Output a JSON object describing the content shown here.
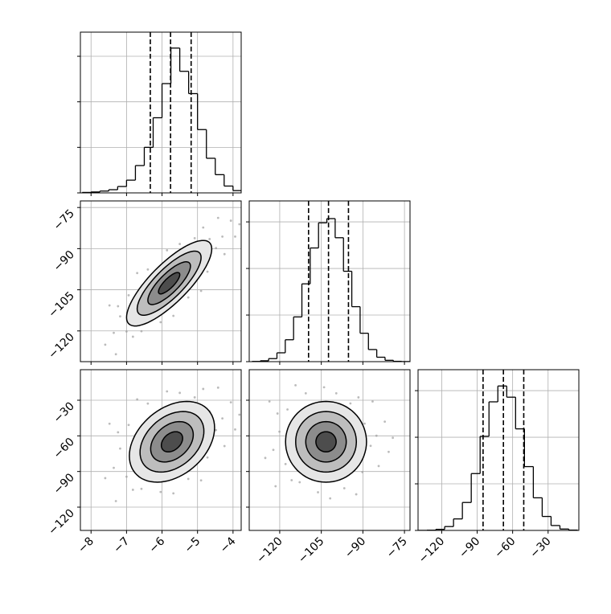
{
  "chart_data": [
    {
      "type": "histogram",
      "color": "#000000",
      "grid": true,
      "bins": [
        -8.25,
        -8,
        -7.75,
        -7.5,
        -7.25,
        -7,
        -6.75,
        -6.5,
        -6.25,
        -6,
        -5.75,
        -5.5,
        -5.25,
        -5,
        -4.75,
        -4.5,
        -4.25,
        -4,
        -3.75
      ],
      "counts": [
        10,
        20,
        40,
        70,
        140,
        280,
        600,
        1000,
        1650,
        2400,
        3180,
        2670,
        2180,
        1390,
        760,
        400,
        150,
        50
      ],
      "quantiles": [
        -6.33,
        -5.76,
        -5.18
      ],
      "xlim": [
        -8.3,
        -3.77
      ],
      "xticks": [
        -8,
        -7,
        -6,
        -5,
        -4
      ],
      "ylim": [
        0,
        3530
      ],
      "yticks": [
        0,
        1000,
        2000,
        3000
      ]
    },
    {
      "type": "scatter",
      "color": "#9e9e9e",
      "grid": true,
      "x": [
        -4.3,
        -7.36,
        -4.72,
        -6.94,
        -5.5,
        -6.04,
        -4.06,
        -7.6,
        -5.08,
        -6.58,
        -4.48,
        -7.18,
        -5.68,
        -5.86,
        -4.84,
        -6.82,
        -4.24,
        -7.24,
        -3.94,
        -7.48,
        -5.26,
        -6.4,
        -4.66,
        -7.0,
        -5.8,
        -5.44,
        -6.16,
        -5.14,
        -6.52,
        -5.62,
        -5.98,
        -4.42,
        -7.3,
        -4.9,
        -6.7,
        -3.82
      ],
      "y": [
        -85.6,
        -120.7,
        -98.4,
        -107.0,
        -88.3,
        -116.8,
        -79.8,
        -125.0,
        -86.2,
        -120.1,
        -89.8,
        -114.7,
        -114.5,
        -90.6,
        -82.3,
        -122.1,
        -92.0,
        -111.0,
        -85.6,
        -110.7,
        -107.8,
        -97.6,
        -86.5,
        -120.2,
        -102.6,
        -102.2,
        -102.6,
        -94.3,
        -111.0,
        -95.1,
        -110.6,
        -78.8,
        -128.5,
        -105.4,
        -98.9,
        -81.1
      ],
      "contours": {
        "center": [
          -5.8,
          -102.6
        ],
        "sigma": [
          0.6,
          7.8
        ],
        "rho": 0.8,
        "levels": [
          2,
          1.5,
          1,
          0.5
        ],
        "fills": [
          "#e6e6e6",
          "#bdbdbd",
          "#8c8c8c",
          "#4d4d4d"
        ],
        "line_color": "#000000"
      },
      "xlim": [
        -8.3,
        -3.77
      ],
      "xticks": [
        -8,
        -7,
        -6,
        -5,
        -4
      ],
      "ylim": [
        -131.2,
        -72.6
      ],
      "yticks": [
        {
          "value": -75,
          "label": "−75"
        },
        {
          "value": -90,
          "label": "−90"
        },
        {
          "value": -105,
          "label": "−105"
        },
        {
          "value": -120,
          "label": "−120"
        }
      ]
    },
    {
      "type": "histogram",
      "color": "#000000",
      "grid": true,
      "bins": [
        -130,
        -127,
        -124,
        -121,
        -118,
        -115,
        -112,
        -109,
        -106,
        -103,
        -100,
        -97,
        -94,
        -91,
        -88,
        -85,
        -82,
        -79,
        -76,
        -73
      ],
      "counts": [
        5,
        19,
        65,
        190,
        470,
        960,
        1670,
        2440,
        2980,
        3070,
        2660,
        1940,
        1180,
        610,
        260,
        95,
        29,
        7,
        2
      ],
      "quantiles": [
        -109.6,
        -102.4,
        -95.2
      ],
      "xlim": [
        -131,
        -73
      ],
      "xticks": [
        -120,
        -105,
        -90,
        -75
      ],
      "ylim": [
        0,
        3450
      ],
      "yticks": [
        0,
        1000,
        2000,
        3000
      ]
    },
    {
      "type": "scatter",
      "color": "#9e9e9e",
      "grid": true,
      "x": [
        -4.3,
        -7.36,
        -4.72,
        -6.94,
        -5.5,
        -6.04,
        -4.06,
        -7.6,
        -5.08,
        -6.58,
        -4.48,
        -7.18,
        -5.68,
        -5.86,
        -4.84,
        -6.82,
        -4.24,
        -7.24,
        -3.94,
        -7.48,
        -5.26,
        -6.4,
        -4.66,
        -7.0,
        -5.8,
        -5.44,
        -6.16,
        -5.14,
        -6.52,
        -5.62,
        -5.98,
        -4.42,
        -7.3,
        -4.9,
        -6.7,
        -3.82
      ],
      "y": [
        -45.3,
        -86.9,
        -78.2,
        -50.8,
        -23.8,
        -107.2,
        -31.8,
        -95.6,
        -27.6,
        -104.6,
        -55.1,
        -70.7,
        -108.4,
        -22.6,
        -20.5,
        -105.4,
        -68.6,
        -57.0,
        -54.6,
        -49.8,
        -96.2,
        -32.8,
        -39.4,
        -94.4,
        -65,
        -72.6,
        -55.9,
        -53.7,
        -75.3,
        -44.1,
        -87.5,
        -19.4,
        -114.9,
        -97.5,
        -29.3,
        -42.2
      ],
      "contours": {
        "center": [
          -5.72,
          -65
        ],
        "sigma": [
          0.6,
          17
        ],
        "rho": 0.35,
        "levels": [
          2,
          1.5,
          1,
          0.5
        ],
        "fills": [
          "#e6e6e6",
          "#bdbdbd",
          "#8c8c8c",
          "#4d4d4d"
        ],
        "line_color": "#000000"
      },
      "xlim": [
        -8.3,
        -3.77
      ],
      "xticks": [
        {
          "value": -8,
          "label": "−8"
        },
        {
          "value": -7,
          "label": "−7"
        },
        {
          "value": -6,
          "label": "−6"
        },
        {
          "value": -5,
          "label": "−5"
        },
        {
          "value": -4,
          "label": "−4"
        }
      ],
      "ylim": [
        -139.6,
        -4.3
      ],
      "yticks": [
        {
          "value": -30,
          "label": "−30"
        },
        {
          "value": -60,
          "label": "−60"
        },
        {
          "value": -90,
          "label": "−90"
        },
        {
          "value": -120,
          "label": "−120"
        }
      ]
    },
    {
      "type": "scatter",
      "color": "#9e9e9e",
      "grid": true,
      "x": [
        -85.1,
        -122.3,
        -90.2,
        -117.2,
        -99.6,
        -106.2,
        -82.1,
        -125.2,
        -94.5,
        -112.8,
        -87.2,
        -120.1,
        -101.8,
        -104.0,
        -91.6,
        -115.7,
        -84.3,
        -120.8,
        -80.7,
        -123.7,
        -96.7,
        -110.6,
        -89.4,
        -117.9,
        -103.3,
        -98.9,
        -107.7,
        -95.3,
        -112.1,
        -101.1,
        -105.5,
        -86.5,
        -121.5,
        -92.4,
        -114.3,
        -79.2
      ],
      "y": [
        -59.9,
        -71.8,
        -90.5,
        -37.8,
        -24.2,
        -107.5,
        -48,
        -78.6,
        -32.7,
        -99,
        -68.4,
        -56.5,
        -112.6,
        -19.1,
        -27.6,
        -97.3,
        -85.4,
        -41.2,
        -73.5,
        -31,
        -104.1,
        -24.2,
        -49.7,
        -83.7,
        -65,
        -76.9,
        -51.4,
        -59.9,
        -68.4,
        -44.6,
        -87.1,
        -31,
        -102.4,
        -109.2,
        -17.4,
        -61.6
      ],
      "contours": {
        "center": [
          -103.3,
          -65
        ],
        "sigma": [
          7.3,
          17
        ],
        "rho": 0.0,
        "levels": [
          2,
          1.5,
          1,
          0.5
        ],
        "fills": [
          "#e6e6e6",
          "#bdbdbd",
          "#8c8c8c",
          "#4d4d4d"
        ],
        "line_color": "#000000"
      },
      "xlim": [
        -131,
        -73
      ],
      "xticks": [
        {
          "value": -120,
          "label": "−120"
        },
        {
          "value": -105,
          "label": "−105"
        },
        {
          "value": -90,
          "label": "−90"
        },
        {
          "value": -75,
          "label": "−75"
        }
      ],
      "ylim": [
        -139.6,
        -4.3
      ],
      "yticks": [
        -30,
        -60,
        -90,
        -120
      ]
    },
    {
      "type": "histogram",
      "color": "#000000",
      "grid": true,
      "bins": [
        -140,
        -132.5,
        -125,
        -117.5,
        -110,
        -102.5,
        -95,
        -87.5,
        -80,
        -72.5,
        -65,
        -57.5,
        -50,
        -42.5,
        -35,
        -27.5,
        -20,
        -12.5,
        -5
      ],
      "counts": [
        1,
        5,
        23,
        83,
        247,
        600,
        1220,
        2020,
        2760,
        3100,
        2860,
        2180,
        1370,
        700,
        300,
        105,
        30,
        7
      ],
      "quantiles": [
        -85,
        -67.8,
        -50.6
      ],
      "xlim": [
        -140,
        -4
      ],
      "xticks": [
        {
          "value": -120,
          "label": "−120"
        },
        {
          "value": -90,
          "label": "−90"
        },
        {
          "value": -60,
          "label": "−60"
        },
        {
          "value": -30,
          "label": "−30"
        }
      ],
      "ylim": [
        0,
        3450
      ],
      "yticks": [
        0,
        1000,
        2000,
        3000
      ]
    }
  ]
}
